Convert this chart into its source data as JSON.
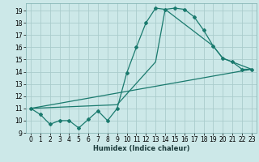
{
  "title": "",
  "xlabel": "Humidex (Indice chaleur)",
  "bg_color": "#cce8e8",
  "grid_color": "#aacccc",
  "line_color": "#1a7a6e",
  "xlim": [
    -0.5,
    23.5
  ],
  "ylim": [
    9.0,
    19.6
  ],
  "yticks": [
    9,
    10,
    11,
    12,
    13,
    14,
    15,
    16,
    17,
    18,
    19
  ],
  "xticks": [
    0,
    1,
    2,
    3,
    4,
    5,
    6,
    7,
    8,
    9,
    10,
    11,
    12,
    13,
    14,
    15,
    16,
    17,
    18,
    19,
    20,
    21,
    22,
    23
  ],
  "series1_x": [
    0,
    1,
    2,
    3,
    4,
    5,
    6,
    7,
    8,
    9,
    10,
    11,
    12,
    13,
    14,
    15,
    16,
    17,
    18,
    19,
    20,
    21,
    22,
    23
  ],
  "series1_y": [
    11.0,
    10.5,
    9.7,
    10.0,
    10.0,
    9.4,
    10.1,
    10.8,
    10.0,
    11.0,
    13.9,
    16.0,
    18.0,
    19.2,
    19.1,
    19.2,
    19.1,
    18.5,
    17.4,
    16.1,
    15.1,
    14.8,
    14.2,
    14.2
  ],
  "series2_x": [
    0,
    9,
    13,
    14,
    19,
    20,
    23
  ],
  "series2_y": [
    11.0,
    11.3,
    14.8,
    19.1,
    16.1,
    15.1,
    14.2
  ],
  "series3_x": [
    0,
    23
  ],
  "series3_y": [
    11.0,
    14.2
  ]
}
